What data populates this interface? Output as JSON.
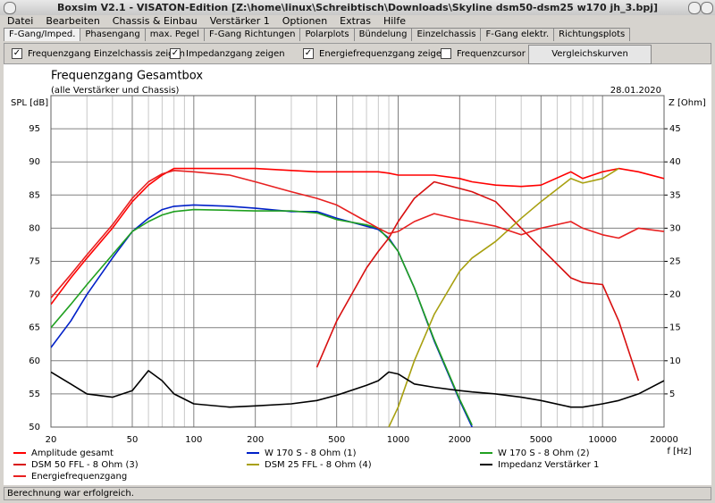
{
  "window": {
    "title": "Boxsim V2.1 - VISATON-Edition [Z:\\home\\linux\\Schreibtisch\\Downloads\\Skyline dsm50-dsm25 w170 jh_3.bpj]"
  },
  "menu": [
    "Datei",
    "Bearbeiten",
    "Chassis & Einbau",
    "Verstärker 1",
    "Optionen",
    "Extras",
    "Hilfe"
  ],
  "tabs": [
    "F-Gang/Imped.",
    "Phasengang",
    "max. Pegel",
    "F-Gang Richtungen",
    "Polarplots",
    "Bündelung",
    "Einzelchassis",
    "F-Gang elektr.",
    "Richtungsplots"
  ],
  "options": [
    {
      "label": "Frequenzgang Einzelchassis zeigen",
      "checked": true
    },
    {
      "label": "Impedanzgang zeigen",
      "checked": true
    },
    {
      "label": "Energiefrequenzgang zeigen",
      "checked": true
    },
    {
      "label": "Frequenzcursor",
      "checked": false
    }
  ],
  "button": "Vergleichskurven einblenden",
  "status": "Berechnung war erfolgreich.",
  "chart_data": {
    "type": "line",
    "title": "Frequenzgang Gesamtbox",
    "subtitle": "(alle Verstärker und Chassis)",
    "date": "28.01.2020",
    "y_label": "SPL [dB]",
    "y2_label": "Z [Ohm]",
    "x_label": "f [Hz]",
    "xscale": "log",
    "grid": true,
    "x": [
      20,
      25,
      30,
      40,
      50,
      60,
      70,
      80,
      100,
      150,
      200,
      300,
      400,
      500,
      700,
      800,
      900,
      1000,
      1200,
      1500,
      2000,
      2300,
      3000,
      4000,
      5000,
      7000,
      8000,
      10000,
      12000,
      15000,
      20000
    ],
    "xlim": [
      20,
      20000
    ],
    "xticks": [
      20,
      50,
      100,
      200,
      500,
      1000,
      2000,
      5000,
      10000,
      20000
    ],
    "xminor": [
      30,
      40,
      60,
      70,
      80,
      90,
      300,
      400,
      600,
      700,
      800,
      900,
      3000,
      4000,
      6000,
      7000,
      8000,
      9000
    ],
    "ylim": [
      50,
      100
    ],
    "yticks": [
      50,
      55,
      60,
      65,
      70,
      75,
      80,
      85,
      90,
      95
    ],
    "y2lim": [
      0,
      50
    ],
    "y2ticks": [
      5,
      10,
      15,
      20,
      25,
      30,
      35,
      40,
      45
    ],
    "series": [
      {
        "name": "Amplitude gesamt",
        "color": "#ff0000",
        "values": [
          68.5,
          72.5,
          75.5,
          80,
          84,
          86.5,
          88,
          89,
          89,
          89,
          89,
          88.7,
          88.5,
          88.5,
          88.5,
          88.5,
          88.3,
          88,
          88,
          88,
          87.5,
          87,
          86.5,
          86.3,
          86.5,
          88.5,
          87.5,
          88.5,
          89,
          88.5,
          87.5
        ]
      },
      {
        "name": "W 170 S - 8 Ohm (1)",
        "color": "#0020c8",
        "values": [
          62,
          66,
          70,
          75.5,
          79.5,
          81.5,
          82.8,
          83.3,
          83.5,
          83.3,
          83,
          82.5,
          82.5,
          81.5,
          80.3,
          79.8,
          78.5,
          76.5,
          71,
          63,
          54,
          50,
          null,
          null,
          null,
          null,
          null,
          null,
          null,
          null,
          null
        ]
      },
      {
        "name": "W 170 S - 8 Ohm (2)",
        "color": "#20a020",
        "values": [
          65,
          68.5,
          71.5,
          76,
          79.5,
          81,
          82,
          82.5,
          82.8,
          82.7,
          82.6,
          82.6,
          82.3,
          81.3,
          80.5,
          80,
          78.3,
          76.5,
          71,
          63.2,
          54.2,
          50.3,
          null,
          null,
          null,
          null,
          null,
          null,
          null,
          null,
          null
        ]
      },
      {
        "name": "DSM 50 FFL - 8 Ohm (3)",
        "color": "#d81010",
        "values": [
          null,
          null,
          null,
          null,
          null,
          null,
          null,
          null,
          null,
          null,
          null,
          null,
          59,
          66,
          74,
          76.5,
          78.5,
          81,
          84.5,
          87,
          86,
          85.5,
          84,
          80,
          77,
          72.5,
          71.8,
          71.5,
          66,
          57,
          null
        ]
      },
      {
        "name": "DSM 25 FFL - 8 Ohm (4)",
        "color": "#a8a010",
        "values": [
          null,
          null,
          null,
          null,
          null,
          null,
          null,
          null,
          null,
          null,
          null,
          null,
          null,
          null,
          null,
          null,
          50,
          53,
          60,
          67,
          73.5,
          75.5,
          78,
          81.5,
          84,
          87.5,
          86.8,
          87.5,
          89,
          null,
          null
        ]
      },
      {
        "name": "Impedanz Verstärker 1",
        "color": "#000000",
        "axis": "y2",
        "values": [
          8.3,
          6.5,
          5,
          4.5,
          5.5,
          8.5,
          7,
          5,
          3.5,
          3,
          3.2,
          3.5,
          4,
          4.8,
          6.3,
          7,
          8.3,
          8,
          6.5,
          6,
          5.5,
          5.3,
          5,
          4.5,
          4,
          3,
          3,
          3.5,
          4,
          5,
          7
        ]
      },
      {
        "name": "Energiefrequenzgang",
        "color": "#e82020",
        "values": [
          69.5,
          73,
          76,
          80.5,
          84.5,
          87,
          88.2,
          88.7,
          88.5,
          88,
          87,
          85.5,
          84.5,
          83.5,
          81,
          80,
          79.2,
          79.5,
          81,
          82.2,
          81.3,
          81,
          80.3,
          79,
          80,
          81,
          80,
          79,
          78.5,
          80,
          79.5
        ]
      }
    ]
  }
}
